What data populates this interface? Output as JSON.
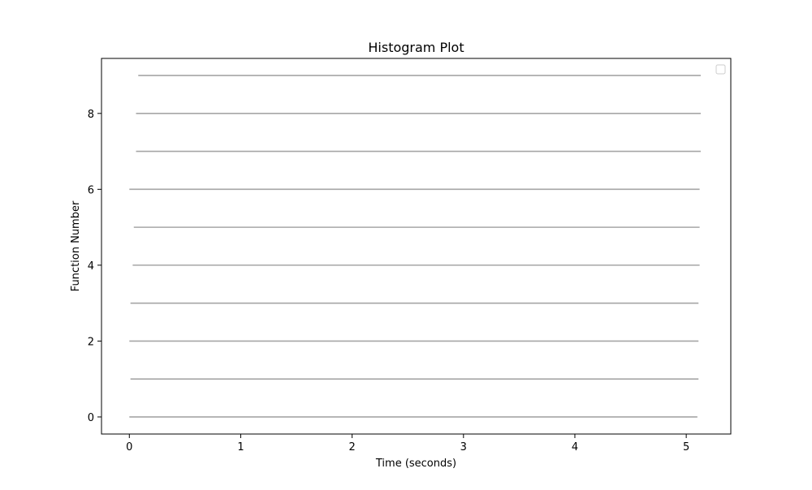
{
  "chart_data": {
    "type": "line",
    "title": "Histogram Plot",
    "xlabel": "Time (seconds)",
    "ylabel": "Function Number",
    "xlim": [
      -0.25,
      5.4
    ],
    "ylim": [
      -0.45,
      9.45
    ],
    "xticks": [
      "0",
      "1",
      "2",
      "3",
      "4",
      "5"
    ],
    "yticks": [
      "0",
      "2",
      "4",
      "6",
      "8"
    ],
    "legend": {
      "placement": "top-right",
      "entries": []
    },
    "grid": false,
    "series_color": "#a6a6a6",
    "series": [
      {
        "y": 0,
        "x_start": 0.0,
        "x_end": 5.1
      },
      {
        "y": 1,
        "x_start": 0.01,
        "x_end": 5.11
      },
      {
        "y": 2,
        "x_start": 0.0,
        "x_end": 5.11
      },
      {
        "y": 3,
        "x_start": 0.01,
        "x_end": 5.11
      },
      {
        "y": 4,
        "x_start": 0.03,
        "x_end": 5.12
      },
      {
        "y": 5,
        "x_start": 0.04,
        "x_end": 5.12
      },
      {
        "y": 6,
        "x_start": 0.0,
        "x_end": 5.12
      },
      {
        "y": 7,
        "x_start": 0.06,
        "x_end": 5.13
      },
      {
        "y": 8,
        "x_start": 0.06,
        "x_end": 5.13
      },
      {
        "y": 9,
        "x_start": 0.08,
        "x_end": 5.13
      }
    ]
  }
}
